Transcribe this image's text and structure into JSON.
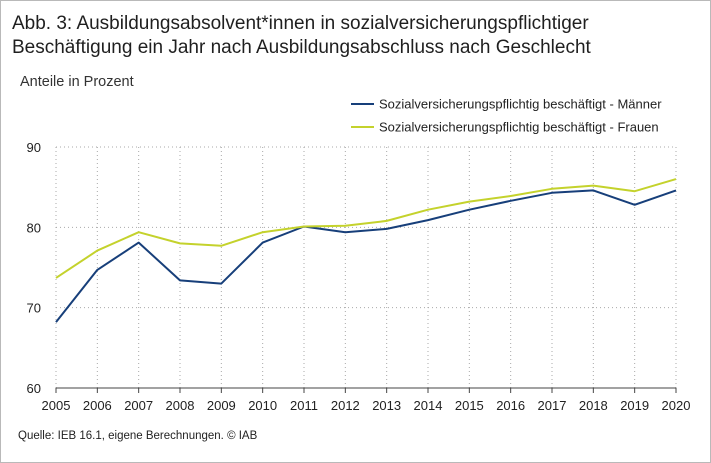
{
  "header": {
    "title": "Abb. 3: Ausbildungsabsolvent*innen in sozialversicherungspflichtiger Beschäftigung ein Jahr nach Ausbildungsabschluss nach Geschlecht",
    "subtitle": "Anteile in Prozent"
  },
  "footer": {
    "source": "Quelle: IEB 16.1, eigene Berechnungen.  © IAB"
  },
  "chart_data": {
    "type": "line",
    "x": [
      "2005",
      "2006",
      "2007",
      "2008",
      "2009",
      "2010",
      "2011",
      "2012",
      "2013",
      "2014",
      "2015",
      "2016",
      "2017",
      "2018",
      "2019",
      "2020"
    ],
    "yticks": [
      60,
      70,
      80,
      90
    ],
    "ylim": [
      60,
      90
    ],
    "grid": "horizontal dotted",
    "legend_position": "top-right",
    "series": [
      {
        "name": "Sozialversicherungspflichtig beschäftigt - Männer",
        "color": "#173f7a",
        "values": [
          68.2,
          74.7,
          78.1,
          73.4,
          73.0,
          78.1,
          80.1,
          79.4,
          79.8,
          80.9,
          82.2,
          83.3,
          84.3,
          84.6,
          82.8,
          84.6
        ]
      },
      {
        "name": "Sozialversicherungspflichtig beschäftigt - Frauen",
        "color": "#c4d22c",
        "values": [
          73.7,
          77.1,
          79.4,
          78.0,
          77.7,
          79.4,
          80.1,
          80.2,
          80.8,
          82.2,
          83.2,
          83.9,
          84.8,
          85.2,
          84.5,
          86.0
        ]
      }
    ]
  }
}
